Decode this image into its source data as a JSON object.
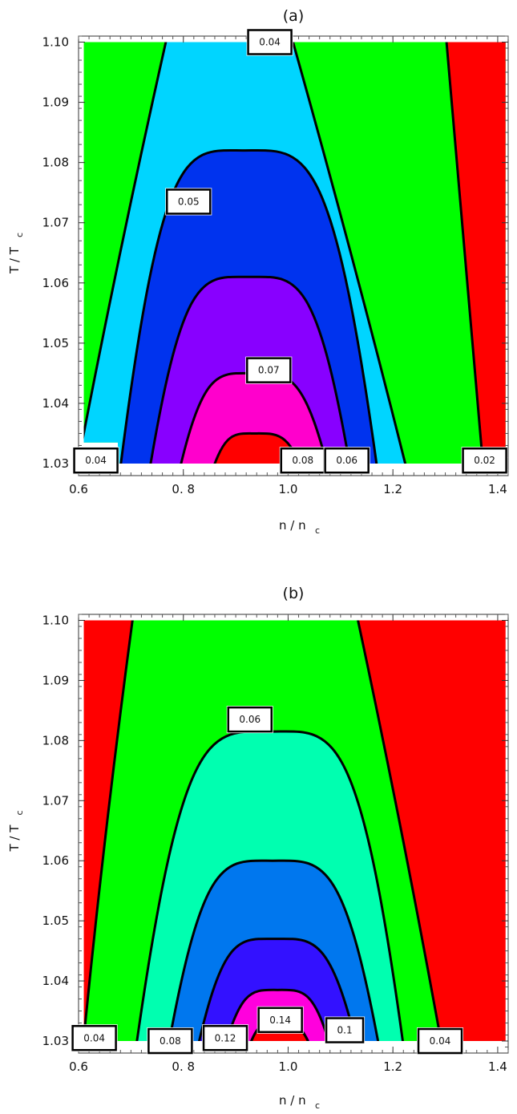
{
  "chart_data": [
    {
      "type": "contour",
      "title": "(a)",
      "xlabel": {
        "main": "n  / n",
        "sub": "c"
      },
      "ylabel": {
        "main": "T  / T",
        "sub": "c"
      },
      "xlim": [
        0.6,
        1.42
      ],
      "ylim": [
        1.028,
        1.101
      ],
      "xticks": [
        {
          "v": 0.6,
          "label": "0.6"
        },
        {
          "v": 0.8,
          "label": "0. 8"
        },
        {
          "v": 1.0,
          "label": "1.0"
        },
        {
          "v": 1.2,
          "label": "1.2"
        },
        {
          "v": 1.4,
          "label": "1.4"
        }
      ],
      "yticks": [
        {
          "v": 1.03,
          "label": "1.03"
        },
        {
          "v": 1.04,
          "label": "1.04"
        },
        {
          "v": 1.05,
          "label": "1.05"
        },
        {
          "v": 1.06,
          "label": "1.06"
        },
        {
          "v": 1.07,
          "label": "1.07"
        },
        {
          "v": 1.08,
          "label": "1.08"
        },
        {
          "v": 1.09,
          "label": "1.09"
        },
        {
          "v": 1.1,
          "label": "1.10"
        }
      ],
      "data_region": {
        "x": [
          0.61,
          1.415
        ],
        "y": [
          1.03,
          1.1
        ],
        "left_cut_y": 1.0335
      },
      "background_color": "#00ff00",
      "regions": [
        {
          "color": "#00d5ff",
          "top_y": 1.1,
          "x_at_top": [
            0.77,
            1.005
          ],
          "x_at_bottom": [
            0.6,
            1.225
          ]
        },
        {
          "color": "#0033ee",
          "top_y": 1.082,
          "x_at_top": [
            0.915,
            0.915
          ],
          "x_at_bottom": [
            0.685,
            1.165
          ]
        },
        {
          "color": "#8800ff",
          "top_y": 1.061,
          "x_at_top": [
            0.925,
            0.925
          ],
          "x_at_bottom": [
            0.74,
            1.115
          ]
        },
        {
          "color": "#ff00cc",
          "top_y": 1.045,
          "x_at_top": [
            0.93,
            0.93
          ],
          "x_at_bottom": [
            0.795,
            1.075
          ]
        },
        {
          "color": "#ff0000",
          "top_y": 1.035,
          "x_at_top": [
            0.935,
            0.935
          ],
          "x_at_bottom": [
            0.855,
            1.03
          ]
        }
      ],
      "right_band": {
        "color": "#ff0000",
        "x_at_top": 1.3,
        "x_at_bottom": 1.375
      },
      "contour_labels": [
        {
          "text": "0.04",
          "x": 0.965,
          "y": 1.1
        },
        {
          "text": "0.05",
          "x": 0.81,
          "y": 1.0735
        },
        {
          "text": "0.07",
          "x": 0.963,
          "y": 1.0455
        },
        {
          "text": "0.04",
          "x": 0.633,
          "y": 1.0305
        },
        {
          "text": "0.08",
          "x": 1.028,
          "y": 1.0305
        },
        {
          "text": "0.06",
          "x": 1.112,
          "y": 1.0305
        },
        {
          "text": "0.02",
          "x": 1.375,
          "y": 1.0305
        }
      ]
    },
    {
      "type": "contour",
      "title": "(b)",
      "xlabel": {
        "main": "n  / n",
        "sub": "c"
      },
      "ylabel": {
        "main": "T  / T",
        "sub": "c"
      },
      "xlim": [
        0.6,
        1.42
      ],
      "ylim": [
        1.028,
        1.101
      ],
      "xticks": [
        {
          "v": 0.6,
          "label": "0.6"
        },
        {
          "v": 0.8,
          "label": "0. 8"
        },
        {
          "v": 1.0,
          "label": "1.0"
        },
        {
          "v": 1.2,
          "label": "1.2"
        },
        {
          "v": 1.4,
          "label": "1.4"
        }
      ],
      "yticks": [
        {
          "v": 1.03,
          "label": "1.03"
        },
        {
          "v": 1.04,
          "label": "1.04"
        },
        {
          "v": 1.05,
          "label": "1.05"
        },
        {
          "v": 1.06,
          "label": "1.06"
        },
        {
          "v": 1.07,
          "label": "1.07"
        },
        {
          "v": 1.08,
          "label": "1.08"
        },
        {
          "v": 1.09,
          "label": "1.09"
        },
        {
          "v": 1.1,
          "label": "1.10"
        }
      ],
      "data_region": {
        "x": [
          0.61,
          1.415
        ],
        "y": [
          1.03,
          1.1
        ],
        "left_cut_y": 1.03
      },
      "background_color": "#ff0000",
      "regions": [
        {
          "color": "#00ff00",
          "top_y": 1.1,
          "x_at_top": [
            0.705,
            1.13
          ],
          "x_at_bottom": [
            0.615,
            1.29
          ]
        },
        {
          "color": "#00ffb0",
          "top_y": 1.0815,
          "x_at_top": [
            0.97,
            0.97
          ],
          "x_at_bottom": [
            0.715,
            1.215
          ]
        },
        {
          "color": "#0077ee",
          "top_y": 1.06,
          "x_at_top": [
            0.97,
            0.97
          ],
          "x_at_bottom": [
            0.775,
            1.17
          ]
        },
        {
          "color": "#3311ff",
          "top_y": 1.047,
          "x_at_top": [
            0.975,
            0.975
          ],
          "x_at_bottom": [
            0.83,
            1.13
          ]
        },
        {
          "color": "#ff00dd",
          "top_y": 1.0385,
          "x_at_top": [
            0.98,
            0.98
          ],
          "x_at_bottom": [
            0.88,
            1.08
          ]
        },
        {
          "color": "#ff0000",
          "top_y": 1.033,
          "x_at_top": [
            0.98,
            0.98
          ],
          "x_at_bottom": [
            0.925,
            1.045
          ]
        }
      ],
      "right_band": null,
      "contour_labels": [
        {
          "text": "0.06",
          "x": 0.927,
          "y": 1.0835
        },
        {
          "text": "0.14",
          "x": 0.985,
          "y": 1.0335
        },
        {
          "text": "0.1",
          "x": 1.108,
          "y": 1.0318
        },
        {
          "text": "0.12",
          "x": 0.88,
          "y": 1.0305
        },
        {
          "text": "0.08",
          "x": 0.775,
          "y": 1.03
        },
        {
          "text": "0.04",
          "x": 1.29,
          "y": 1.03
        },
        {
          "text": "0.04",
          "x": 0.63,
          "y": 1.0305
        }
      ]
    }
  ]
}
